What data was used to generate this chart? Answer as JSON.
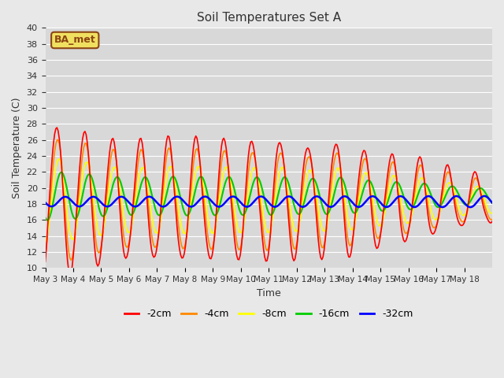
{
  "title": "Soil Temperatures Set A",
  "xlabel": "Time",
  "ylabel": "Soil Temperature (C)",
  "ylim": [
    10,
    40
  ],
  "xtick_labels": [
    "May 3",
    "May 4",
    "May 5",
    "May 6",
    "May 7",
    "May 8",
    "May 9",
    "May 10",
    "May 11",
    "May 12",
    "May 13",
    "May 14",
    "May 15",
    "May 16",
    "May 17",
    "May 18"
  ],
  "colors": {
    "-2cm": "#ff0000",
    "-4cm": "#ff8800",
    "-8cm": "#ffff00",
    "-16cm": "#00cc00",
    "-32cm": "#0000ff"
  },
  "legend_label": "BA_met",
  "background_color": "#e8e8e8",
  "plot_bg_color": "#d8d8d8"
}
